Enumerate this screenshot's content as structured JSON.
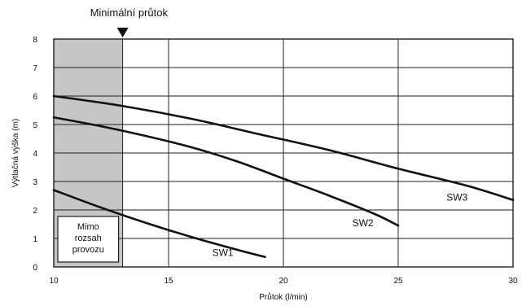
{
  "chart_data": {
    "type": "line",
    "title": "",
    "xlabel": "Průtok (l/min)",
    "ylabel": "Výtlačná výška (m)",
    "xlim": [
      10,
      30
    ],
    "ylim": [
      0,
      8
    ],
    "x_ticks": [
      10,
      15,
      20,
      25,
      30
    ],
    "y_ticks": [
      0,
      1,
      2,
      3,
      4,
      5,
      6,
      7,
      8
    ],
    "grid": true,
    "series": [
      {
        "name": "SW1",
        "x": [
          10,
          12,
          14,
          16,
          18,
          19.2
        ],
        "y": [
          2.7,
          2.1,
          1.55,
          1.05,
          0.6,
          0.35
        ]
      },
      {
        "name": "SW2",
        "x": [
          10,
          12,
          14,
          16,
          18,
          20,
          22,
          24,
          25
        ],
        "y": [
          5.25,
          4.95,
          4.6,
          4.2,
          3.7,
          3.1,
          2.5,
          1.85,
          1.45
        ]
      },
      {
        "name": "SW3",
        "x": [
          10,
          13,
          16,
          19,
          22,
          25,
          28,
          30
        ],
        "y": [
          6.0,
          5.65,
          5.2,
          4.65,
          4.1,
          3.45,
          2.85,
          2.35
        ]
      }
    ],
    "shaded_region": {
      "x_from": 10,
      "x_to": 13,
      "label_lines": [
        "Mimo",
        "rozsah",
        "provozu"
      ]
    },
    "marker": {
      "x": 13,
      "label": "Minimální průtok"
    },
    "series_label_positions": [
      {
        "name": "SW1",
        "x": 16.9,
        "y": 0.5
      },
      {
        "name": "SW2",
        "x": 23,
        "y": 1.55
      },
      {
        "name": "SW3",
        "x": 27.1,
        "y": 2.45
      }
    ],
    "colors": {
      "line": "#111111",
      "grid": "#222222",
      "shade": "#c6c6c6"
    }
  }
}
